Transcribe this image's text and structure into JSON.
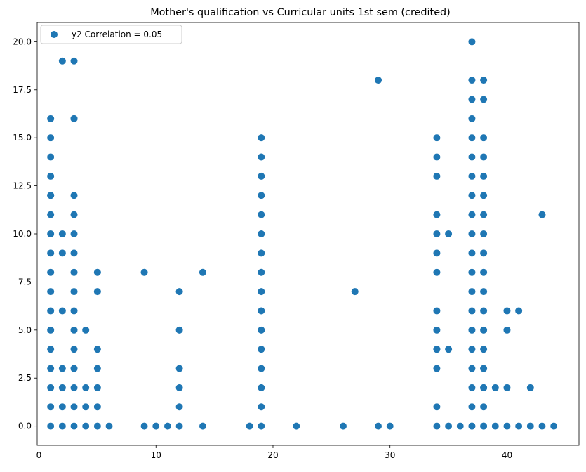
{
  "chart_data": {
    "type": "scatter",
    "title": "Mother's qualification vs Curricular units 1st sem (credited)",
    "xlabel": "",
    "ylabel": "",
    "xlim": [
      -0.15,
      46.15
    ],
    "ylim": [
      -1.0,
      21.0
    ],
    "xticks": [
      0,
      10,
      20,
      30,
      40
    ],
    "xtick_labels": [
      "0",
      "10",
      "20",
      "30",
      "40"
    ],
    "yticks": [
      0.0,
      2.5,
      5.0,
      7.5,
      10.0,
      12.5,
      15.0,
      17.5,
      20.0
    ],
    "ytick_labels": [
      "0.0",
      "2.5",
      "5.0",
      "7.5",
      "10.0",
      "12.5",
      "15.0",
      "17.5",
      "20.0"
    ],
    "grid": false,
    "legend": {
      "position": "top-left",
      "label": "y2 Correlation = 0.05"
    },
    "series": [
      {
        "name": "y2 Correlation = 0.05",
        "color": "#1f77b4",
        "x": [
          1,
          1,
          1,
          1,
          1,
          1,
          1,
          1,
          1,
          1,
          1,
          1,
          1,
          1,
          1,
          1,
          2,
          2,
          2,
          2,
          2,
          2,
          2,
          2,
          3,
          3,
          3,
          3,
          3,
          3,
          3,
          3,
          3,
          3,
          3,
          3,
          3,
          3,
          3,
          3,
          4,
          4,
          4,
          4,
          5,
          5,
          5,
          5,
          5,
          5,
          5,
          6,
          9,
          9,
          10,
          11,
          12,
          12,
          12,
          12,
          12,
          12,
          14,
          14,
          18,
          19,
          19,
          19,
          19,
          19,
          19,
          19,
          19,
          19,
          19,
          19,
          19,
          19,
          19,
          19,
          19,
          22,
          26,
          27,
          29,
          29,
          30,
          34,
          34,
          34,
          34,
          34,
          34,
          34,
          34,
          34,
          34,
          34,
          34,
          34,
          34,
          35,
          35,
          35,
          36,
          37,
          37,
          37,
          37,
          37,
          37,
          37,
          37,
          37,
          37,
          37,
          37,
          37,
          37,
          37,
          37,
          37,
          37,
          37,
          37,
          38,
          38,
          38,
          38,
          38,
          38,
          38,
          38,
          38,
          38,
          38,
          38,
          38,
          38,
          38,
          38,
          38,
          38,
          38,
          38,
          39,
          39,
          40,
          40,
          40,
          40,
          41,
          41,
          42,
          42,
          43,
          43,
          44
        ],
        "y": [
          0,
          1,
          2,
          3,
          4,
          5,
          6,
          7,
          8,
          9,
          10,
          11,
          12,
          13,
          14,
          15,
          0,
          1,
          2,
          3,
          6,
          9,
          10,
          19,
          0,
          1,
          2,
          3,
          4,
          5,
          6,
          7,
          8,
          9,
          10,
          11,
          12,
          16,
          19,
          3,
          0,
          1,
          2,
          5,
          0,
          1,
          2,
          3,
          4,
          7,
          8,
          0,
          0,
          8,
          0,
          0,
          0,
          1,
          2,
          3,
          5,
          7,
          0,
          8,
          0,
          0,
          1,
          2,
          3,
          4,
          5,
          6,
          7,
          8,
          9,
          10,
          11,
          12,
          13,
          14,
          15,
          0,
          0,
          7,
          0,
          18,
          0,
          0,
          1,
          3,
          4,
          5,
          6,
          8,
          9,
          10,
          11,
          13,
          14,
          15,
          4,
          0,
          4,
          10,
          0,
          0,
          1,
          2,
          3,
          4,
          5,
          6,
          7,
          8,
          9,
          10,
          11,
          12,
          13,
          14,
          15,
          16,
          17,
          18,
          20,
          0,
          1,
          2,
          3,
          4,
          5,
          6,
          7,
          8,
          9,
          10,
          11,
          12,
          13,
          14,
          15,
          17,
          18,
          3,
          2,
          0,
          2,
          0,
          2,
          5,
          6,
          0,
          6,
          0,
          2,
          0,
          11,
          0
        ]
      },
      {
        "name": "",
        "color": "#1f77b4",
        "x": [
          1,
          1,
          3,
          37,
          38
        ],
        "y": [
          16,
          12,
          16,
          0,
          0
        ]
      }
    ]
  }
}
